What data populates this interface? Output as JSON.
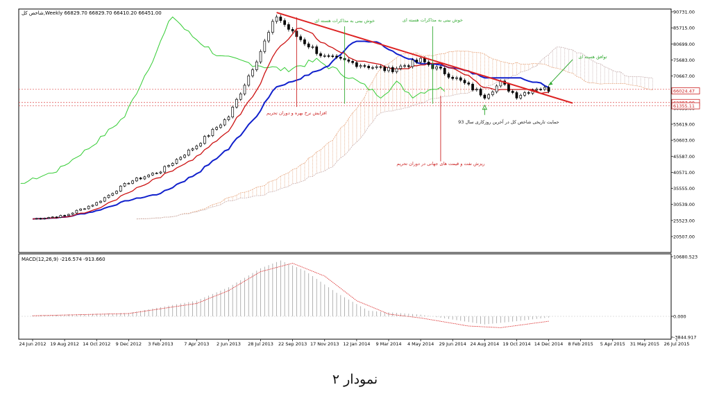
{
  "figure_caption": "نمودار ۲",
  "chart_data": [
    {
      "type": "candlestick",
      "title": "شاخص کل,Weekly  66829.70 66829.70 66410.20 66451.00",
      "x_axis": {
        "tick_labels": [
          "24 Jun 2012",
          "19 Aug 2012",
          "14 Oct 2012",
          "9 Dec 2012",
          "3 Feb 2013",
          "7 Apr 2013",
          "2 Jun 2013",
          "28 Jul 2013",
          "22 Sep 2013",
          "17 Nov 2013",
          "12 Jan 2014",
          "9 Mar 2014",
          "4 May 2014",
          "29 Jun 2014",
          "24 Aug 2014",
          "19 Oct 2014",
          "14 Dec 2014",
          "8 Feb 2015",
          "5 Apr 2015",
          "31 May 2015",
          "26 Jul 2015"
        ]
      },
      "y_axis": {
        "tick_labels": [
          "90731.00",
          "85715.00",
          "80699.00",
          "75683.00",
          "70667.00",
          "65651.00",
          "60635.00",
          "55619.00",
          "50603.00",
          "45587.00",
          "40571.00",
          "35555.00",
          "30539.00",
          "25523.00",
          "20507.00"
        ],
        "range": [
          18000,
          92000
        ]
      },
      "price_tags": [
        {
          "label": "66024.47",
          "value": 66024.47,
          "color": "#cc2222"
        },
        {
          "label": "62387.99",
          "value": 62387.99,
          "color": "#cc2222"
        },
        {
          "label": "61355.11",
          "value": 61355.11,
          "color": "#cc2222"
        }
      ],
      "anchors": [
        {
          "date": "2012-06-24",
          "value": 26000
        },
        {
          "date": "2012-08-19",
          "value": 27000
        },
        {
          "date": "2012-10-14",
          "value": 31000
        },
        {
          "date": "2012-12-09",
          "value": 37500
        },
        {
          "date": "2013-02-03",
          "value": 41000
        },
        {
          "date": "2013-04-07",
          "value": 49000
        },
        {
          "date": "2013-06-02",
          "value": 58000
        },
        {
          "date": "2013-07-28",
          "value": 78500
        },
        {
          "date": "2013-08-25",
          "value": 89500
        },
        {
          "date": "2013-09-22",
          "value": 84000
        },
        {
          "date": "2013-11-17",
          "value": 76500
        },
        {
          "date": "2014-01-12",
          "value": 74500
        },
        {
          "date": "2014-03-09",
          "value": 72500
        },
        {
          "date": "2014-05-04",
          "value": 75500
        },
        {
          "date": "2014-06-29",
          "value": 70500
        },
        {
          "date": "2014-08-24",
          "value": 64500
        },
        {
          "date": "2014-09-21",
          "value": 68500
        },
        {
          "date": "2014-10-19",
          "value": 64500
        },
        {
          "date": "2014-11-23",
          "value": 67000
        },
        {
          "date": "2014-12-14",
          "value": 66451
        }
      ],
      "trendline": {
        "start": {
          "date": "2013-08-25",
          "value": 90500
        },
        "end": {
          "date": "2015-01-25",
          "value": 62200
        },
        "color": "#dd2222"
      },
      "horizontal_lines": [
        66500,
        62400,
        61400
      ],
      "annotations": [
        {
          "text": "خوش بینی به مذاکرات هسته ای",
          "date": "2013-12-22",
          "value": 87500,
          "color": "#33aa33",
          "line_from": 86200,
          "line_to": 62000
        },
        {
          "text": "خوش بینی به مذاکرات هسته ای",
          "date": "2014-05-25",
          "value": 87700,
          "color": "#33aa33",
          "line_from": 86200,
          "line_to": 62000
        },
        {
          "text": "توافق هسته ای",
          "date": "2015-03-01",
          "value": 76200,
          "color": "#33aa33",
          "arrow_from": {
            "date": "2015-01-25",
            "value": 75800
          },
          "arrow_to": {
            "date": "2014-12-14",
            "value": 67800
          }
        },
        {
          "text": "افزایش نرخ بهره و دوران تحریم",
          "date": "2013-09-29",
          "value": 58600,
          "color": "#cc2222",
          "line_from": 89000,
          "line_to": 61000
        },
        {
          "text": "حمایت تاریخی شاخص کل در آخرین روزکاری سال 93",
          "date": "2014-10-05",
          "value": 55800,
          "color": "#222222",
          "arrow_at": {
            "date": "2014-08-24",
            "value": 58500
          }
        },
        {
          "text": "ریزش نفت و قیمت های جهانی در دوران تحریم",
          "date": "2014-06-08",
          "value": 42800,
          "color": "#cc2222",
          "line_from": 64500,
          "line_to": 44000
        }
      ]
    },
    {
      "type": "histogram",
      "title": "MACD(12,26,9) -216.574 -913.660",
      "y_axis": {
        "tick_labels": [
          "10680.523",
          "0.000",
          "-3844.917"
        ],
        "range": [
          -3844.917,
          10680.523
        ]
      },
      "macd_anchors": [
        {
          "date": "2012-06-24",
          "value": 150
        },
        {
          "date": "2012-12-09",
          "value": 600
        },
        {
          "date": "2013-04-07",
          "value": 2800
        },
        {
          "date": "2013-06-02",
          "value": 5200
        },
        {
          "date": "2013-07-28",
          "value": 8600
        },
        {
          "date": "2013-09-01",
          "value": 10000
        },
        {
          "date": "2013-10-13",
          "value": 8200
        },
        {
          "date": "2013-12-08",
          "value": 4200
        },
        {
          "date": "2014-02-02",
          "value": 1000
        },
        {
          "date": "2014-05-04",
          "value": 300
        },
        {
          "date": "2014-08-24",
          "value": -1500
        },
        {
          "date": "2014-10-19",
          "value": -900
        },
        {
          "date": "2014-12-14",
          "value": -217
        }
      ],
      "signal_anchors": [
        {
          "date": "2012-06-24",
          "value": 100
        },
        {
          "date": "2012-12-09",
          "value": 500
        },
        {
          "date": "2013-04-07",
          "value": 2300
        },
        {
          "date": "2013-06-02",
          "value": 4600
        },
        {
          "date": "2013-07-28",
          "value": 8000
        },
        {
          "date": "2013-09-22",
          "value": 9500
        },
        {
          "date": "2013-11-17",
          "value": 7200
        },
        {
          "date": "2014-01-12",
          "value": 2800
        },
        {
          "date": "2014-03-09",
          "value": 400
        },
        {
          "date": "2014-05-04",
          "value": -300
        },
        {
          "date": "2014-07-27",
          "value": -1800
        },
        {
          "date": "2014-09-21",
          "value": -2100
        },
        {
          "date": "2014-12-14",
          "value": -914
        }
      ]
    }
  ]
}
